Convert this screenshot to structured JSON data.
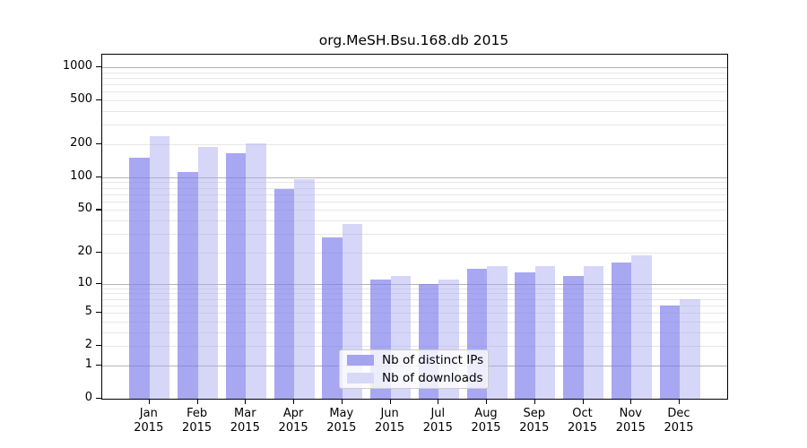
{
  "title": "org.MeSH.Bsu.168.db 2015",
  "chart_data": {
    "type": "bar",
    "title": "org.MeSH.Bsu.168.db 2015",
    "y_scale": "log1p",
    "grid": true,
    "legend_position": "inside-bottom-center",
    "categories": [
      "Jan",
      "Feb",
      "Mar",
      "Apr",
      "May",
      "Jun",
      "Jul",
      "Aug",
      "Sep",
      "Oct",
      "Nov",
      "Dec"
    ],
    "x_sublabel": "2015",
    "series": [
      {
        "name": "Nb of distinct IPs",
        "color": "rgba(120,120,235,0.65)",
        "legend_color": "#a4a4f0",
        "values": [
          150,
          112,
          165,
          78,
          28,
          11,
          10,
          14,
          13,
          12,
          16,
          6
        ]
      },
      {
        "name": "Nb of downloads",
        "color": "rgba(165,165,240,0.45)",
        "legend_color": "#d8d8f8",
        "values": [
          235,
          190,
          205,
          96,
          37,
          12,
          11,
          15,
          15,
          15,
          19,
          7
        ]
      }
    ],
    "y_tick_values": [
      1000,
      500,
      200,
      100,
      50,
      20,
      10,
      5,
      2,
      1,
      0
    ],
    "y_tick_labels": [
      "1000",
      "500",
      "200",
      "100",
      "50",
      "20",
      "10",
      "5",
      "2",
      "1",
      "0"
    ],
    "y_major_gridlines": [
      1,
      10,
      100,
      1000
    ],
    "y_minor_gridlines": [
      2,
      3,
      4,
      5,
      6,
      7,
      8,
      9,
      20,
      30,
      40,
      50,
      60,
      70,
      80,
      90,
      200,
      300,
      400,
      500,
      600,
      700,
      800,
      900
    ],
    "ylim": [
      0,
      1300
    ],
    "xlabel": "",
    "ylabel": ""
  },
  "colors": {
    "major_grid": "#b4b4b4",
    "minor_grid": "#e7e7e7",
    "spine": "#000000",
    "legend_border": "#cccccc",
    "legend_background": "rgba(255,255,255,0.8)"
  }
}
